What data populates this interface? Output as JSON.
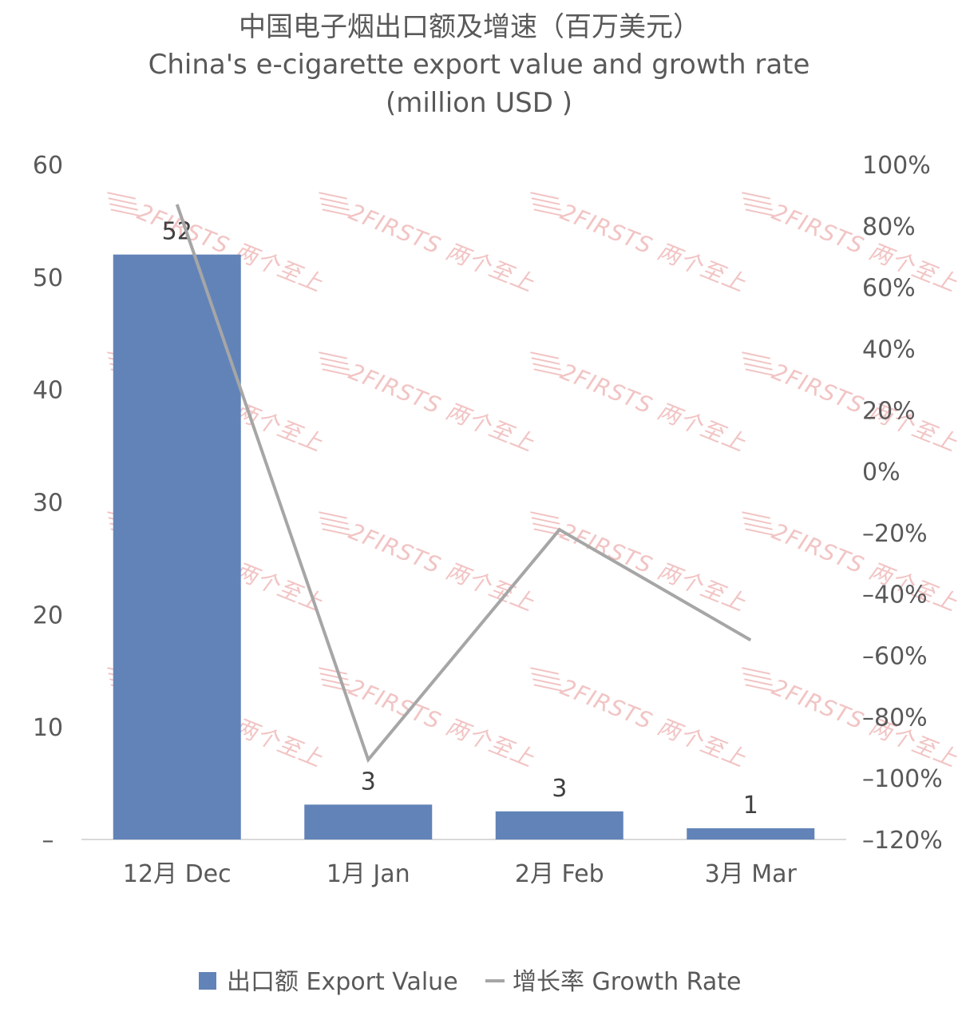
{
  "chart_data": {
    "type": "bar",
    "title": "中国电子烟出口额及增速（百万美元）",
    "subtitle_line1": "China's e-cigarette export value and growth rate",
    "subtitle_line2": "(million USD )",
    "categories": [
      "12月 Dec",
      "1月 Jan",
      "2月 Feb",
      "3月 Mar"
    ],
    "series": [
      {
        "name": "出口额 Export Value",
        "type": "bar",
        "axis": "left",
        "values": [
          52,
          3.1,
          2.5,
          1.0
        ],
        "data_labels": [
          "52",
          "3",
          "3",
          "1"
        ],
        "color": "#6283b8"
      },
      {
        "name": "增长率 Growth Rate",
        "type": "line",
        "axis": "right",
        "values": [
          0.87,
          -0.94,
          -0.19,
          -0.55
        ],
        "color": "#a6a6a6"
      }
    ],
    "y_left": {
      "ylim": [
        0,
        60
      ],
      "ticks": [
        0,
        10,
        20,
        30,
        40,
        50,
        60
      ],
      "tick_labels": [
        "–",
        "10",
        "20",
        "30",
        "40",
        "50",
        "60"
      ]
    },
    "y_right": {
      "ylim": [
        -1.2,
        1.0
      ],
      "ticks": [
        1.0,
        0.8,
        0.6,
        0.4,
        0.2,
        0,
        -0.2,
        -0.4,
        -0.6,
        -0.8,
        -1.0,
        -1.2
      ],
      "tick_labels": [
        "100%",
        "80%",
        "60%",
        "40%",
        "20%",
        "0%",
        "–20%",
        "–40%",
        "–60%",
        "–80%",
        "–100%",
        "–120%"
      ]
    },
    "grid": false,
    "legend_position": "bottom"
  },
  "watermark": {
    "text": "2FIRSTS 两个至上",
    "color": "#f2c4c4"
  }
}
